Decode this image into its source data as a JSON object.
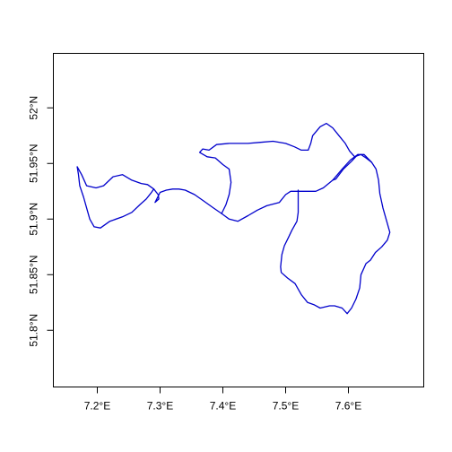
{
  "chart_data": {
    "type": "map",
    "xlim": [
      7.13,
      7.72
    ],
    "ylim": [
      51.749,
      52.049
    ],
    "xticks": [
      {
        "value": 7.2,
        "label": "7.2°E"
      },
      {
        "value": 7.3,
        "label": "7.3°E"
      },
      {
        "value": 7.4,
        "label": "7.4°E"
      },
      {
        "value": 7.5,
        "label": "7.5°E"
      },
      {
        "value": 7.6,
        "label": "7.6°E"
      }
    ],
    "yticks": [
      {
        "value": 51.8,
        "label": "51.8°N"
      },
      {
        "value": 51.85,
        "label": "51.85°N"
      },
      {
        "value": 51.9,
        "label": "51.9°N"
      },
      {
        "value": 51.95,
        "label": "51.95°N"
      },
      {
        "value": 52.0,
        "label": "52°N"
      }
    ],
    "line_color": "#0000cc",
    "series": [
      {
        "lonlat": [
          [
            7.168,
            51.947
          ],
          [
            7.175,
            51.94
          ],
          [
            7.183,
            51.93
          ],
          [
            7.198,
            51.928
          ],
          [
            7.21,
            51.93
          ],
          [
            7.225,
            51.938
          ],
          [
            7.24,
            51.94
          ],
          [
            7.255,
            51.935
          ],
          [
            7.27,
            51.932
          ],
          [
            7.28,
            51.931
          ],
          [
            7.29,
            51.927
          ],
          [
            7.297,
            51.922
          ],
          [
            7.298,
            51.918
          ],
          [
            7.292,
            51.915
          ],
          [
            7.3,
            51.924
          ],
          [
            7.31,
            51.926
          ],
          [
            7.32,
            51.927
          ],
          [
            7.33,
            51.927
          ],
          [
            7.34,
            51.926
          ],
          [
            7.355,
            51.922
          ],
          [
            7.37,
            51.916
          ],
          [
            7.385,
            51.91
          ],
          [
            7.398,
            51.905
          ],
          [
            7.41,
            51.9
          ],
          [
            7.424,
            51.898
          ],
          [
            7.44,
            51.903
          ],
          [
            7.455,
            51.908
          ],
          [
            7.47,
            51.912
          ],
          [
            7.49,
            51.915
          ],
          [
            7.5,
            51.922
          ],
          [
            7.508,
            51.925
          ],
          [
            7.52,
            51.925
          ],
          [
            7.535,
            51.925
          ],
          [
            7.548,
            51.925
          ],
          [
            7.56,
            51.928
          ],
          [
            7.575,
            51.935
          ],
          [
            7.59,
            51.945
          ],
          [
            7.603,
            51.953
          ],
          [
            7.615,
            51.958
          ],
          [
            7.625,
            51.958
          ],
          [
            7.637,
            51.951
          ],
          [
            7.644,
            51.945
          ],
          [
            7.648,
            51.935
          ],
          [
            7.65,
            51.923
          ],
          [
            7.655,
            51.91
          ],
          [
            7.662,
            51.896
          ],
          [
            7.666,
            51.888
          ],
          [
            7.662,
            51.881
          ],
          [
            7.653,
            51.875
          ],
          [
            7.643,
            51.87
          ],
          [
            7.635,
            51.863
          ],
          [
            7.628,
            51.86
          ],
          [
            7.62,
            51.85
          ],
          [
            7.618,
            51.838
          ],
          [
            7.612,
            51.828
          ],
          [
            7.605,
            51.82
          ],
          [
            7.598,
            51.815
          ],
          [
            7.59,
            51.82
          ],
          [
            7.578,
            51.822
          ],
          [
            7.57,
            51.822
          ],
          [
            7.555,
            51.82
          ],
          [
            7.545,
            51.823
          ],
          [
            7.535,
            51.825
          ],
          [
            7.525,
            51.832
          ],
          [
            7.515,
            51.842
          ],
          [
            7.503,
            51.847
          ],
          [
            7.493,
            51.852
          ],
          [
            7.492,
            51.857
          ],
          [
            7.494,
            51.868
          ],
          [
            7.498,
            51.876
          ],
          [
            7.505,
            51.884
          ],
          [
            7.51,
            51.89
          ],
          [
            7.518,
            51.898
          ],
          [
            7.52,
            51.906
          ],
          [
            7.52,
            51.915
          ],
          [
            7.52,
            51.926
          ]
        ]
      },
      {
        "lonlat": [
          [
            7.168,
            51.947
          ],
          [
            7.17,
            51.94
          ],
          [
            7.172,
            51.93
          ],
          [
            7.178,
            51.92
          ],
          [
            7.183,
            51.91
          ],
          [
            7.188,
            51.9
          ],
          [
            7.195,
            51.893
          ],
          [
            7.205,
            51.892
          ],
          [
            7.22,
            51.898
          ],
          [
            7.24,
            51.902
          ],
          [
            7.255,
            51.906
          ],
          [
            7.268,
            51.913
          ],
          [
            7.278,
            51.918
          ],
          [
            7.285,
            51.923
          ],
          [
            7.29,
            51.927
          ]
        ]
      },
      {
        "lonlat": [
          [
            7.398,
            51.905
          ],
          [
            7.405,
            51.913
          ],
          [
            7.41,
            51.922
          ],
          [
            7.413,
            51.933
          ],
          [
            7.41,
            51.945
          ],
          [
            7.4,
            51.949
          ],
          [
            7.388,
            51.955
          ],
          [
            7.375,
            51.956
          ],
          [
            7.363,
            51.96
          ],
          [
            7.368,
            51.963
          ],
          [
            7.378,
            51.962
          ],
          [
            7.39,
            51.967
          ],
          [
            7.41,
            51.968
          ],
          [
            7.42,
            51.968
          ],
          [
            7.44,
            51.968
          ],
          [
            7.46,
            51.969
          ],
          [
            7.48,
            51.97
          ],
          [
            7.5,
            51.968
          ],
          [
            7.514,
            51.965
          ],
          [
            7.525,
            51.962
          ],
          [
            7.536,
            51.962
          ],
          [
            7.54,
            51.968
          ],
          [
            7.543,
            51.975
          ],
          [
            7.555,
            51.983
          ],
          [
            7.565,
            51.986
          ],
          [
            7.575,
            51.982
          ],
          [
            7.585,
            51.975
          ],
          [
            7.595,
            51.968
          ],
          [
            7.602,
            51.961
          ],
          [
            7.61,
            51.956
          ],
          [
            7.62,
            51.958
          ],
          [
            7.628,
            51.955
          ],
          [
            7.637,
            51.951
          ]
        ]
      },
      {
        "lonlat": [
          [
            7.615,
            51.958
          ],
          [
            7.605,
            51.952
          ],
          [
            7.592,
            51.945
          ],
          [
            7.58,
            51.936
          ],
          [
            7.575,
            51.935
          ]
        ]
      }
    ]
  }
}
